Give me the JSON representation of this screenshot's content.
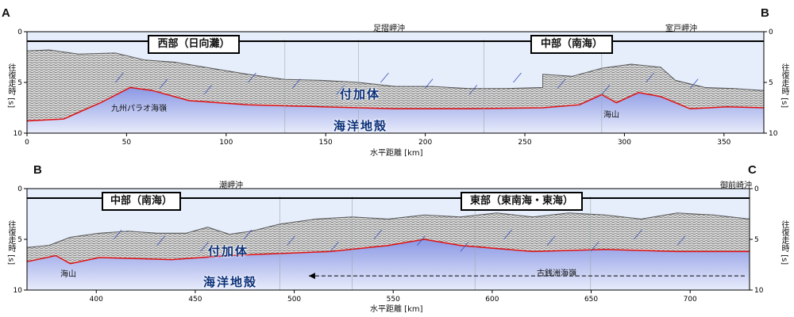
{
  "panels": [
    {
      "id": "top",
      "left_label": "A",
      "right_label": "B",
      "locations": [
        "足摺岬沖",
        "室戸岬沖"
      ],
      "regions": [
        "西部（日向灘）",
        "中部（南海）"
      ],
      "labels": {
        "accretion": "付加体",
        "crust": "海洋地殻",
        "ridge": "九州パラオ海嶺",
        "seamount": "海山"
      },
      "x_ticks": [
        0,
        50,
        100,
        150,
        200,
        250,
        300,
        350
      ],
      "y_ticks": [
        0,
        5,
        10
      ],
      "x_range": [
        0,
        370
      ],
      "y_range": [
        0,
        10
      ]
    },
    {
      "id": "bottom",
      "left_label": "B",
      "right_label": "C",
      "locations": [
        "潮岬沖",
        "御前崎沖"
      ],
      "regions": [
        "中部（南海）",
        "東部（東南海・東海）"
      ],
      "labels": {
        "accretion": "付加体",
        "crust": "海洋地殻",
        "seamount": "海山",
        "ridge": "古銭洲海嶺"
      },
      "x_ticks": [
        400,
        450,
        500,
        550,
        600,
        650,
        700
      ],
      "y_ticks": [
        0,
        5,
        10
      ],
      "x_range": [
        365,
        730
      ],
      "y_range": [
        0,
        10
      ]
    }
  ],
  "axes": {
    "xlabel": "水平距離 [km]",
    "ylabel": "往復走時 [s]"
  },
  "colors": {
    "sea": "#e6eefb",
    "crust": "#7f8fe0",
    "interface": "#e01010",
    "fault": "#3a4fb8"
  }
}
